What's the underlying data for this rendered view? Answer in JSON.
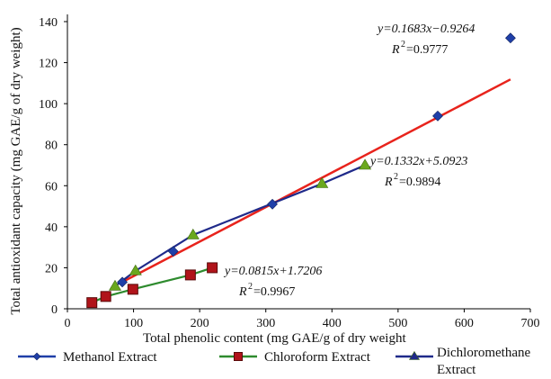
{
  "chart_data": {
    "type": "scatter",
    "xlabel": "Total phenolic content (mg GAE/g of dry weight",
    "ylabel": "Total antioxidant capacity (mg GAE/g of dry weight)",
    "xlim": [
      0,
      700
    ],
    "ylim": [
      0,
      140
    ],
    "x_ticks": [
      0,
      100,
      200,
      300,
      400,
      500,
      600,
      700
    ],
    "y_ticks": [
      0,
      20,
      40,
      60,
      80,
      100,
      120,
      140
    ],
    "grid": false,
    "legend_position": "bottom",
    "series": [
      {
        "name": "Methanol Extract",
        "marker": "diamond",
        "marker_color": "#1f3fa8",
        "line_color": "#1f3fa8",
        "points": [
          {
            "x": 83,
            "y": 13
          },
          {
            "x": 160,
            "y": 28
          },
          {
            "x": 310,
            "y": 51
          },
          {
            "x": 560,
            "y": 94
          },
          {
            "x": 670,
            "y": 132
          }
        ],
        "trend_line": {
          "color": "#e8231c",
          "x_range": [
            83,
            670
          ],
          "slope": 0.1683,
          "intercept": -0.9264
        },
        "equation": "y=0.1683x−0.9264",
        "r2": "=0.9777"
      },
      {
        "name": "Chloroform Extract",
        "marker": "square",
        "marker_color": "#b0141a",
        "line_color": "#2e8b2e",
        "points": [
          {
            "x": 37,
            "y": 3
          },
          {
            "x": 58,
            "y": 6
          },
          {
            "x": 99,
            "y": 9.5
          },
          {
            "x": 186,
            "y": 16.5
          },
          {
            "x": 219,
            "y": 20
          }
        ],
        "trend_line": {
          "color": "#2e8b2e",
          "x_range": [
            37,
            219
          ],
          "slope": 0.0815,
          "intercept": 1.7206
        },
        "equation": "y=0.0815x+1.7206",
        "r2": "=0.9967"
      },
      {
        "name": "Dichloromethane Extract",
        "marker": "triangle",
        "marker_color": "#6aa81e",
        "line_color": "#1f2a8a",
        "points": [
          {
            "x": 72,
            "y": 11
          },
          {
            "x": 103,
            "y": 18.5
          },
          {
            "x": 190,
            "y": 36
          },
          {
            "x": 385,
            "y": 61
          },
          {
            "x": 450,
            "y": 70
          }
        ],
        "trend_line": {
          "color": "#1f2a8a",
          "x_range": [
            72,
            450
          ],
          "slope": 0.1332,
          "intercept": 5.0923
        },
        "equation": "y=0.1332x+5.0923",
        "r2": "=0.9894"
      }
    ],
    "legend": [
      {
        "label": "Methanol Extract",
        "line_color": "#1f3fa8",
        "marker": "diamond",
        "marker_color": "#1f3fa8"
      },
      {
        "label": "Chloroform Extract",
        "line_color": "#2e8b2e",
        "marker": "square",
        "marker_color": "#b0141a"
      },
      {
        "label_line1": "Dichloromethane",
        "label_line2": "Extract",
        "line_color": "#1f2a8a",
        "marker": "triangle",
        "marker_color": "#1f2a8a"
      }
    ]
  }
}
